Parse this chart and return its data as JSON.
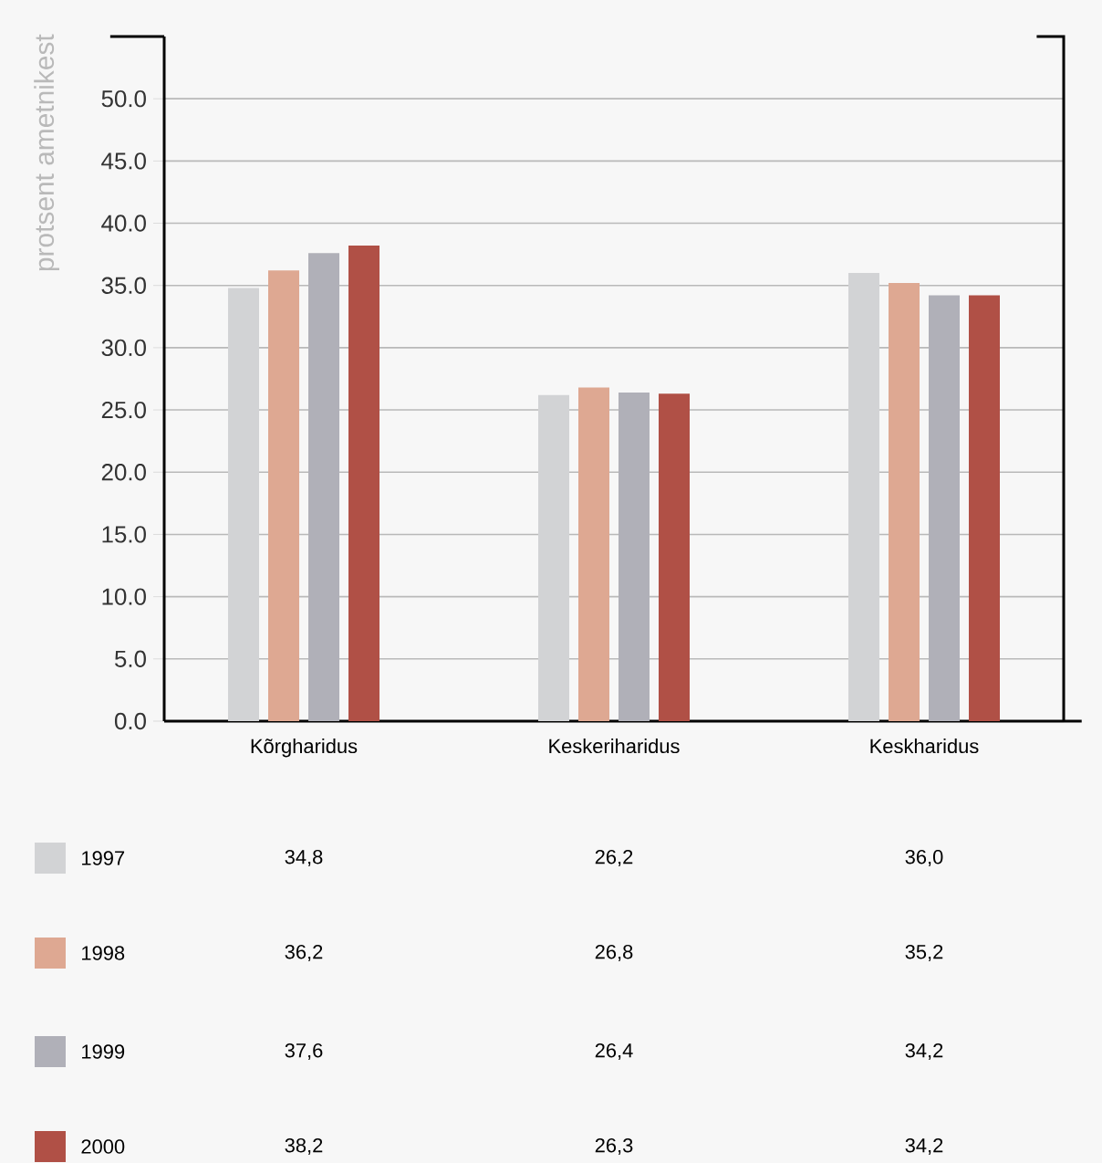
{
  "chart_data": {
    "type": "bar",
    "ylabel": "protsent ametnikest",
    "categories": [
      "Kõrgharidus",
      "Keskeriharidus",
      "Keskharidus"
    ],
    "series": [
      {
        "name": "1997",
        "color": "#d2d3d5",
        "values": [
          34.8,
          26.2,
          36.0
        ],
        "value_labels": [
          "34,8",
          "26,2",
          "36,0"
        ]
      },
      {
        "name": "1998",
        "color": "#dea892",
        "values": [
          36.2,
          26.8,
          35.2
        ],
        "value_labels": [
          "36,2",
          "26,8",
          "35,2"
        ]
      },
      {
        "name": "1999",
        "color": "#b0b0b8",
        "values": [
          37.6,
          26.4,
          34.2
        ],
        "value_labels": [
          "37,6",
          "26,4",
          "34,2"
        ]
      },
      {
        "name": "2000",
        "color": "#b05046",
        "values": [
          38.2,
          26.3,
          34.2
        ],
        "value_labels": [
          "38,2",
          "26,3",
          "34,2"
        ]
      }
    ],
    "ylim": [
      0,
      55
    ],
    "yticks": [
      {
        "value": 0,
        "label": "0.0"
      },
      {
        "value": 5,
        "label": "5.0"
      },
      {
        "value": 10,
        "label": "10.0"
      },
      {
        "value": 15,
        "label": "15.0"
      },
      {
        "value": 20,
        "label": "20.0"
      },
      {
        "value": 25,
        "label": "25.0"
      },
      {
        "value": 30,
        "label": "30.0"
      },
      {
        "value": 35,
        "label": "35.0"
      },
      {
        "value": 40,
        "label": "40.0"
      },
      {
        "value": 45,
        "label": "45.0"
      },
      {
        "value": 50,
        "label": "50.0"
      }
    ],
    "grid": "y",
    "legend": "bottom"
  }
}
